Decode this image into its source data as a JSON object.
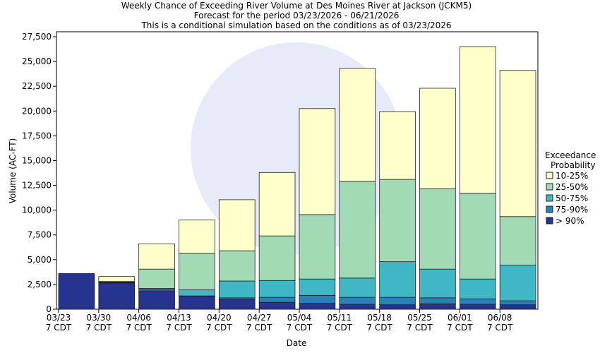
{
  "chart_data": {
    "type": "stacked_bar",
    "title": "Weekly Chance of Exceeding River Volume at Des Moines River at Jackson (JCKM5)",
    "subtitles": [
      "Forecast for the period 03/23/2026 - 06/21/2026",
      "This is a conditional simulation based on the conditions as of 03/23/2026"
    ],
    "x_label": "Date",
    "y_label": "Volume (AC-FT)",
    "legend_title": [
      "Exceedance",
      "Probability"
    ],
    "categories": [
      [
        "03/23",
        "7 CDT"
      ],
      [
        "03/30",
        "7 CDT"
      ],
      [
        "04/06",
        "7 CDT"
      ],
      [
        "04/13",
        "7 CDT"
      ],
      [
        "04/20",
        "7 CDT"
      ],
      [
        "04/27",
        "7 CDT"
      ],
      [
        "05/04",
        "7 CDT"
      ],
      [
        "05/11",
        "7 CDT"
      ],
      [
        "05/18",
        "7 CDT"
      ],
      [
        "05/25",
        "7 CDT"
      ],
      [
        "06/01",
        "7 CDT"
      ],
      [
        "06/08",
        "7 CDT"
      ]
    ],
    "series": [
      {
        "name": "> 90%",
        "color": "#27348f",
        "values": [
          3600,
          2650,
          1850,
          1300,
          1000,
          700,
          600,
          500,
          450,
          550,
          500,
          450
        ]
      },
      {
        "name": "75-90%",
        "color": "#2c7fb8",
        "values": [
          0,
          50,
          150,
          50,
          150,
          500,
          800,
          700,
          750,
          600,
          550,
          400
        ]
      },
      {
        "name": "50-75%",
        "color": "#41b6c4",
        "values": [
          0,
          50,
          100,
          600,
          1700,
          1700,
          1650,
          1950,
          3600,
          2900,
          2000,
          3600
        ]
      },
      {
        "name": "25-50%",
        "color": "#a1dab4",
        "values": [
          0,
          50,
          1950,
          3700,
          3050,
          4500,
          6500,
          9750,
          8300,
          8100,
          8650,
          4900
        ]
      },
      {
        "name": "10-25%",
        "color": "#ffffcc",
        "values": [
          0,
          500,
          2550,
          3350,
          5150,
          6400,
          10700,
          11400,
          6850,
          10150,
          14800,
          14750
        ]
      }
    ],
    "ylim": [
      0,
      28000
    ],
    "yticks": [
      0,
      {
        "value": 2500,
        "label": "2,500"
      },
      {
        "value": 5000,
        "label": "5,000"
      },
      {
        "value": 7500,
        "label": "7,500"
      },
      {
        "value": 10000,
        "label": "10,000"
      },
      {
        "value": 12500,
        "label": "12,500"
      },
      {
        "value": 15000,
        "label": "15,000"
      },
      {
        "value": 17500,
        "label": "17,500"
      },
      {
        "value": 20000,
        "label": "20,000"
      },
      {
        "value": 22500,
        "label": "22,500"
      },
      {
        "value": 25000,
        "label": "25,000"
      },
      {
        "value": 27500,
        "label": "27,500"
      }
    ]
  }
}
